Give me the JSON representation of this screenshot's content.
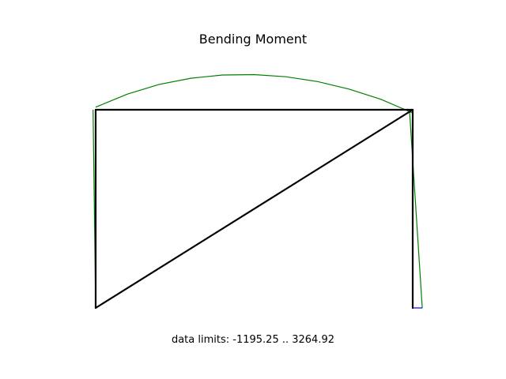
{
  "chart_data": {
    "type": "line",
    "title": "Bending Moment",
    "annotation": "data limits:  -1195.25 .. 3264.92",
    "axes_visible": false,
    "grid": false,
    "colors": {
      "frame": "#000000",
      "moment_positive": "#008000",
      "moment_negative": "#0000ff"
    },
    "frame": {
      "nodes": [
        {
          "id": 1,
          "x": 0,
          "y": 0
        },
        {
          "id": 2,
          "x": 0,
          "y": 1
        },
        {
          "id": 3,
          "x": 1,
          "y": 1
        },
        {
          "id": 4,
          "x": 1,
          "y": 0
        }
      ],
      "members": [
        [
          1,
          2
        ],
        [
          2,
          3
        ],
        [
          3,
          4
        ],
        [
          1,
          3
        ]
      ]
    },
    "data_limits": {
      "min": -1195.25,
      "max": 3264.92
    },
    "series": [
      {
        "member": [
          1,
          2
        ],
        "values": [
          0,
          193
        ]
      },
      {
        "member": [
          2,
          3
        ],
        "values": [
          193,
          1170,
          1900,
          2360,
          2600,
          2630,
          2470,
          2110,
          1540,
          780,
          -245
        ]
      },
      {
        "member": [
          3,
          4
        ],
        "values": [
          -245,
          715
        ]
      }
    ]
  }
}
